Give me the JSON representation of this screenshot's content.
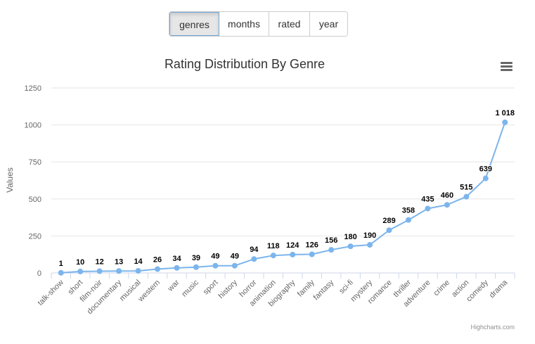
{
  "toolbar": {
    "buttons": [
      {
        "label": "genres",
        "active": true
      },
      {
        "label": "months",
        "active": false
      },
      {
        "label": "rated",
        "active": false
      },
      {
        "label": "year",
        "active": false
      }
    ]
  },
  "credits": "Highcharts.com",
  "menu_icon": "hamburger-menu-icon",
  "chart_data": {
    "type": "line",
    "title": "Rating Distribution By Genre",
    "ylabel": "Values",
    "ylim": [
      0,
      1250
    ],
    "yticks": [
      "0",
      "250",
      "500",
      "750",
      "1000",
      "1250"
    ],
    "grid": true,
    "categories": [
      "talk-show",
      "short",
      "film-noir",
      "documentary",
      "musical",
      "western",
      "war",
      "music",
      "sport",
      "history",
      "horror",
      "animation",
      "biography",
      "family",
      "fantasy",
      "sci-fi",
      "mystery",
      "romance",
      "thriller",
      "adventure",
      "crime",
      "action",
      "comedy",
      "drama"
    ],
    "values": [
      1,
      10,
      12,
      13,
      14,
      26,
      34,
      39,
      49,
      49,
      94,
      118,
      124,
      126,
      156,
      180,
      190,
      289,
      358,
      435,
      460,
      515,
      639,
      1018
    ],
    "data_labels": [
      "1",
      "10",
      "12",
      "13",
      "14",
      "26",
      "34",
      "39",
      "49",
      "49",
      "94",
      "118",
      "124",
      "126",
      "156",
      "180",
      "190",
      "289",
      "358",
      "435",
      "460",
      "515",
      "639",
      "1 018"
    ],
    "color": "#7cb5ec"
  }
}
